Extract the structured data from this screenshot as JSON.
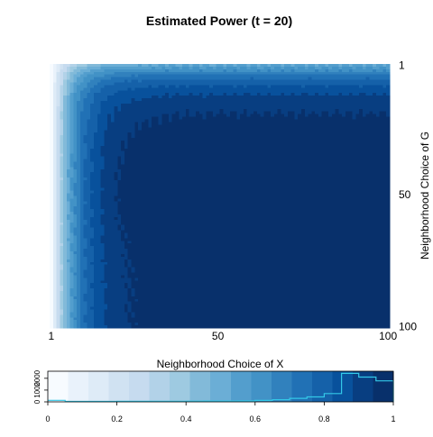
{
  "chart_data": {
    "type": "heatmap",
    "title": "Estimated Power (t = 20)",
    "xlabel": "Neighborhood Choice of X",
    "ylabel": "Neighborhood Choice of G",
    "x_range": [
      1,
      100
    ],
    "y_range": [
      1,
      100
    ],
    "x_ticks": [
      "1",
      "50",
      "100"
    ],
    "y_ticks": [
      "1",
      "50",
      "100"
    ],
    "y_axis_side": "right",
    "y_reversed": true,
    "value_range": [
      0,
      1
    ],
    "colormap": [
      "#f7fbff",
      "#e9f2fb",
      "#deebf7",
      "#d0e2f2",
      "#c6dbef",
      "#b2d2e8",
      "#9ecae1",
      "#82bad9",
      "#6baed6",
      "#539ecd",
      "#4292c6",
      "#3181bd",
      "#2171b5",
      "#1561a9",
      "#08519c",
      "#083e81",
      "#08306b"
    ],
    "legend": {
      "type": "colorbar-histogram",
      "x_ticks": [
        "0",
        "0.2",
        "0.4",
        "0.6",
        "0.8",
        "1"
      ],
      "y_ticks": [
        "0",
        "1000",
        "2000"
      ],
      "ylim": [
        0,
        2600
      ],
      "histogram_color": "#33c8e8",
      "bins": [
        0.0,
        0.05,
        0.1,
        0.15,
        0.2,
        0.25,
        0.3,
        0.35,
        0.4,
        0.45,
        0.5,
        0.55,
        0.6,
        0.65,
        0.7,
        0.75,
        0.8,
        0.85,
        0.9,
        0.95,
        1.0
      ],
      "counts": [
        130,
        40,
        40,
        40,
        45,
        45,
        50,
        55,
        60,
        65,
        70,
        80,
        120,
        180,
        300,
        420,
        700,
        2420,
        2100,
        1780
      ]
    }
  }
}
